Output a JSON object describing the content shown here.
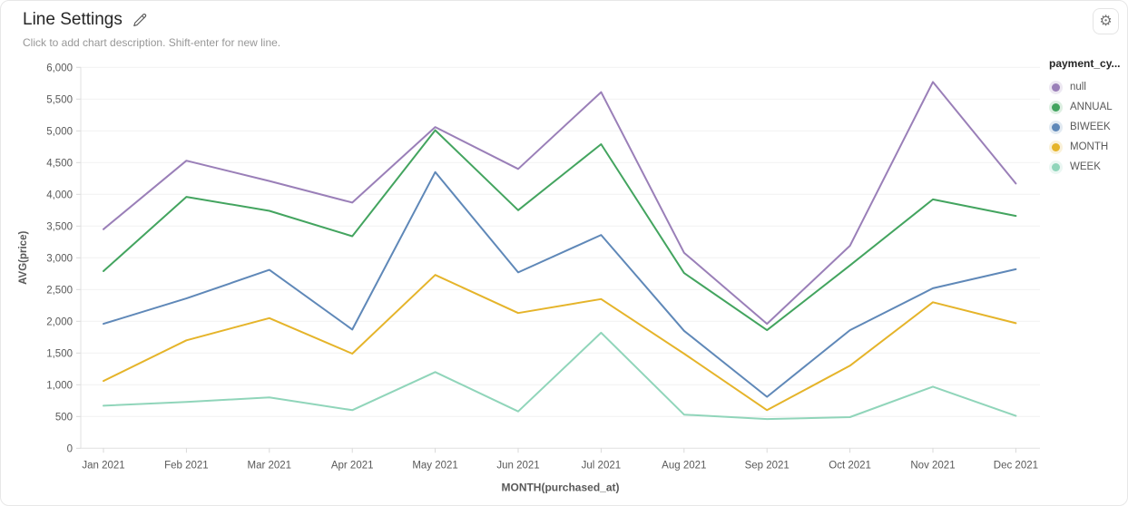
{
  "header": {
    "title": "Line Settings",
    "description_placeholder": "Click to add chart description. Shift-enter for new line."
  },
  "legend": {
    "title": "payment_cy...",
    "items": [
      {
        "label": "null",
        "color": "#9a7fb8"
      },
      {
        "label": "ANNUAL",
        "color": "#43a45f"
      },
      {
        "label": "BIWEEK",
        "color": "#5f88b8"
      },
      {
        "label": "MONTH",
        "color": "#e5b42a"
      },
      {
        "label": "WEEK",
        "color": "#90d5ba"
      }
    ]
  },
  "chart_data": {
    "type": "line",
    "title": "",
    "xlabel": "MONTH(purchased_at)",
    "ylabel": "AVG(price)",
    "categories": [
      "Jan 2021",
      "Feb 2021",
      "Mar 2021",
      "Apr 2021",
      "May 2021",
      "Jun 2021",
      "Jul 2021",
      "Aug 2021",
      "Sep 2021",
      "Oct 2021",
      "Nov 2021",
      "Dec 2021"
    ],
    "ylim": [
      0,
      6000
    ],
    "y_tick_step": 500,
    "grid": "horizontal",
    "legend_position": "right",
    "series": [
      {
        "name": "null",
        "color": "#9a7fb8",
        "values": [
          3450,
          4530,
          4210,
          3870,
          5060,
          4400,
          5610,
          3080,
          1960,
          3190,
          5770,
          4170
        ]
      },
      {
        "name": "ANNUAL",
        "color": "#43a45f",
        "values": [
          2790,
          3960,
          3740,
          3340,
          5010,
          3750,
          4790,
          2760,
          1860,
          2880,
          3920,
          3660
        ]
      },
      {
        "name": "BIWEEK",
        "color": "#5f88b8",
        "values": [
          1960,
          2360,
          2810,
          1870,
          4350,
          2770,
          3360,
          1850,
          810,
          1860,
          2520,
          2820
        ]
      },
      {
        "name": "MONTH",
        "color": "#e5b42a",
        "values": [
          1060,
          1700,
          2050,
          1490,
          2730,
          2130,
          2350,
          1490,
          600,
          1300,
          2300,
          1970
        ]
      },
      {
        "name": "WEEK",
        "color": "#90d5ba",
        "values": [
          670,
          730,
          800,
          600,
          1200,
          580,
          1820,
          530,
          460,
          490,
          970,
          510
        ]
      }
    ]
  }
}
